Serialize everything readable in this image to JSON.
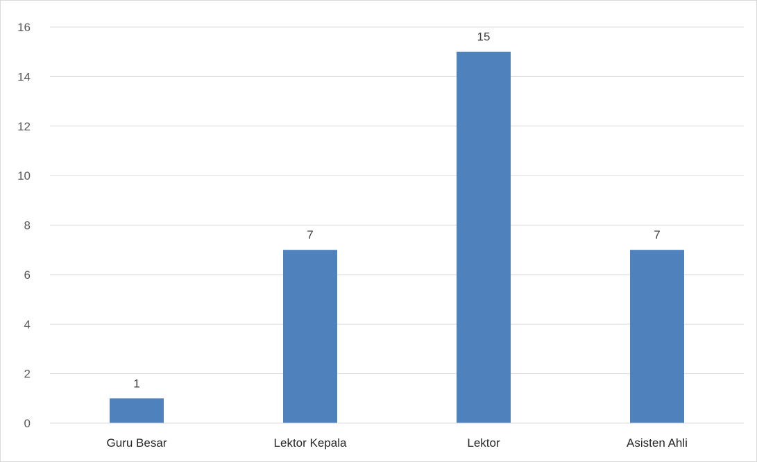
{
  "chart_data": {
    "type": "bar",
    "title": "",
    "xlabel": "",
    "ylabel": "",
    "categories": [
      "Guru Besar",
      "Lektor Kepala",
      "Lektor",
      "Asisten Ahli"
    ],
    "values": [
      1,
      7,
      15,
      7
    ],
    "data_labels": [
      "1",
      "7",
      "15",
      "7"
    ],
    "ylim": [
      0,
      16
    ],
    "yticks": [
      0,
      2,
      4,
      6,
      8,
      10,
      12,
      14,
      16
    ],
    "grid": true,
    "legend": "none",
    "colors": {
      "bar": "#4f81bd",
      "grid": "#d9d9d9",
      "axis": "#d9d9d9"
    }
  }
}
